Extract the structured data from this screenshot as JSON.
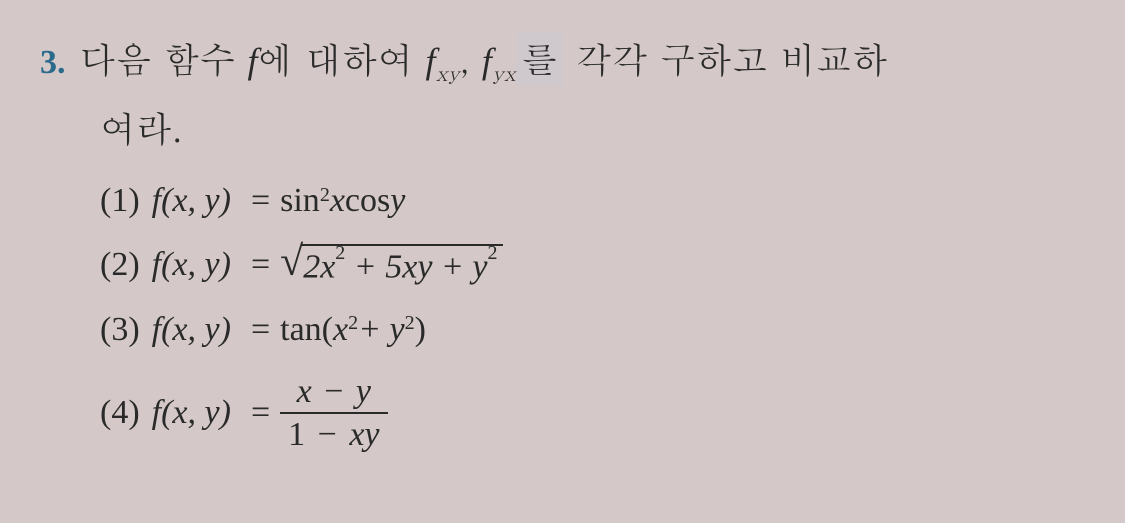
{
  "problem": {
    "number": "3.",
    "text_part1": "다음 함수 ",
    "f_symbol": "f",
    "text_part2": "에 대하여 ",
    "fxy": "f",
    "fxy_sub": "xy",
    "comma": ", ",
    "fyx": "f",
    "fyx_sub": "yx",
    "text_part3": "를",
    "text_part4": " 각각 구하고 비교하",
    "text_line2": "여라."
  },
  "sub_problems": {
    "p1": {
      "num": "(1)",
      "func": "f(x, y)",
      "eq": "=",
      "expr_sin": "sin",
      "expr_sup1": "2",
      "expr_x": "x ",
      "expr_cos": "cos",
      "expr_y": "y"
    },
    "p2": {
      "num": "(2)",
      "func": "f(x, y)",
      "eq": "=",
      "sqrt_2x": "2x",
      "sqrt_sup1": "2",
      "sqrt_plus1": "+ 5xy + y",
      "sqrt_sup2": "2"
    },
    "p3": {
      "num": "(3)",
      "func": "f(x, y)",
      "eq": "=",
      "tan": "tan",
      "paren_open": "(",
      "x": "x",
      "sup1": "2",
      "plus": "+ y",
      "sup2": "2",
      "paren_close": ")"
    },
    "p4": {
      "num": "(4)",
      "func": "f(x, y)",
      "eq": "=",
      "num_x": "x",
      "num_minus": "−",
      "num_y": "y",
      "den_1": "1",
      "den_minus": "−",
      "den_xy": "xy"
    }
  },
  "colors": {
    "background": "#d4c9c8",
    "number_color": "#2a6a8a",
    "text_color": "#2a2a2a"
  },
  "typography": {
    "problem_number_size": 34,
    "body_size": 36,
    "sub_problem_size": 34
  }
}
